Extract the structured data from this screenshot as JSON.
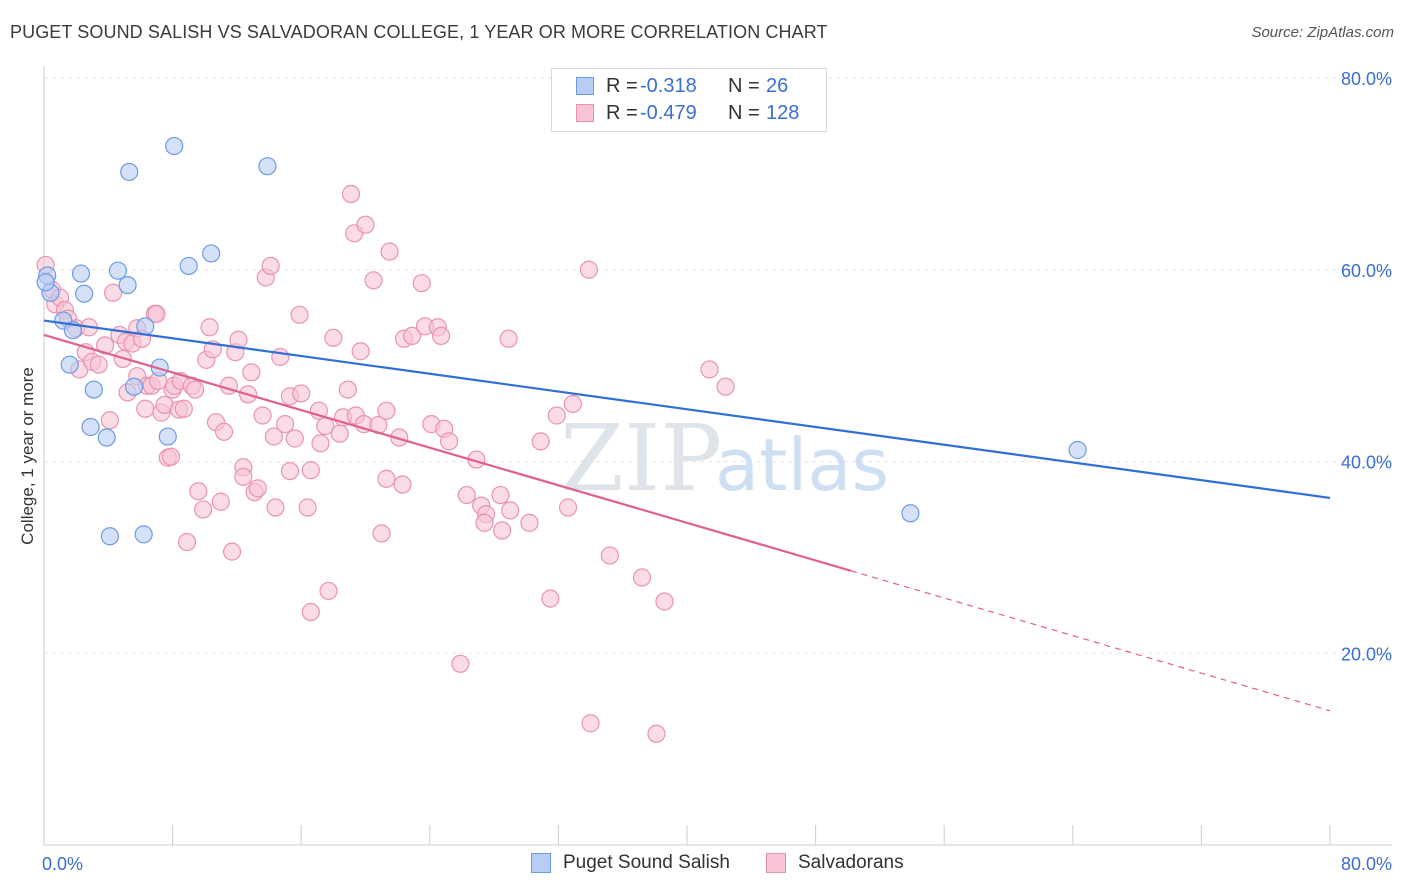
{
  "title": "PUGET SOUND SALISH VS SALVADORAN COLLEGE, 1 YEAR OR MORE CORRELATION CHART",
  "source": "Source: ZipAtlas.com",
  "watermark": {
    "zip": "ZIP",
    "atlas": "atlas"
  },
  "legend": {
    "r_label": "R =",
    "n_label": "N =",
    "rows": [
      {
        "r": "-0.318",
        "n": "26",
        "fill": "#b7cdf3",
        "stroke": "#6e9be6"
      },
      {
        "r": "-0.479",
        "n": "128",
        "fill": "#f8c3d4",
        "stroke": "#e993b2"
      }
    ]
  },
  "bottom_legend": [
    {
      "label": "Puget Sound Salish",
      "fill": "#b7cdf3",
      "stroke": "#6e9be6"
    },
    {
      "label": "Salvadorans",
      "fill": "#f8c3d4",
      "stroke": "#e993b2"
    }
  ],
  "chart_data": {
    "type": "scatter",
    "xlabel": "",
    "ylabel": "College, 1 year or more",
    "xlim": [
      0,
      80
    ],
    "ylim": [
      0,
      80
    ],
    "x_tick_labels": [
      "0.0%",
      "80.0%"
    ],
    "y_tick_labels": [
      "20.0%",
      "40.0%",
      "60.0%",
      "80.0%"
    ],
    "y_ticks": [
      20,
      40,
      60,
      80
    ],
    "colors": {
      "blue_line": "#2f6fd6",
      "pink_line": "#e0608e",
      "axis_text": "#3a6fd0"
    },
    "series": [
      {
        "name": "Puget Sound Salish",
        "trend": {
          "x0": 0,
          "y0": 54.7,
          "x1": 80,
          "y1": 36.2,
          "dash_from": null
        },
        "points": [
          [
            0.2,
            59.4
          ],
          [
            0.4,
            57.6
          ],
          [
            1.2,
            54.7
          ],
          [
            1.6,
            50.1
          ],
          [
            1.8,
            53.7
          ],
          [
            2.3,
            59.6
          ],
          [
            2.5,
            57.5
          ],
          [
            2.9,
            43.6
          ],
          [
            3.1,
            47.5
          ],
          [
            3.9,
            42.5
          ],
          [
            4.1,
            32.2
          ],
          [
            4.6,
            59.9
          ],
          [
            5.2,
            58.4
          ],
          [
            5.3,
            70.2
          ],
          [
            5.6,
            47.8
          ],
          [
            6.2,
            32.4
          ],
          [
            6.3,
            54.1
          ],
          [
            7.2,
            49.8
          ],
          [
            7.7,
            42.6
          ],
          [
            8.1,
            72.9
          ],
          [
            9.0,
            60.4
          ],
          [
            10.4,
            61.7
          ],
          [
            13.9,
            70.8
          ],
          [
            64.3,
            41.2
          ],
          [
            53.9,
            34.6
          ],
          [
            0.1,
            58.7
          ]
        ]
      },
      {
        "name": "Salvadorans",
        "trend": {
          "x0": 0,
          "y0": 53.2,
          "x1": 80,
          "y1": 14.0,
          "dash_from": 50.2
        },
        "points": [
          [
            0.1,
            60.5
          ],
          [
            0.5,
            57.9
          ],
          [
            0.7,
            56.4
          ],
          [
            1.0,
            57.1
          ],
          [
            1.3,
            55.8
          ],
          [
            1.5,
            54.9
          ],
          [
            2.0,
            53.9
          ],
          [
            2.2,
            49.6
          ],
          [
            2.6,
            51.4
          ],
          [
            2.8,
            54.0
          ],
          [
            3.0,
            50.4
          ],
          [
            3.4,
            50.1
          ],
          [
            3.8,
            52.1
          ],
          [
            4.1,
            44.3
          ],
          [
            4.3,
            57.6
          ],
          [
            4.7,
            53.2
          ],
          [
            4.9,
            50.7
          ],
          [
            5.1,
            52.5
          ],
          [
            5.2,
            47.2
          ],
          [
            5.5,
            52.3
          ],
          [
            5.8,
            48.9
          ],
          [
            5.8,
            53.9
          ],
          [
            6.1,
            52.8
          ],
          [
            6.3,
            45.5
          ],
          [
            6.4,
            47.9
          ],
          [
            6.7,
            47.9
          ],
          [
            6.9,
            55.4
          ],
          [
            7.0,
            55.4
          ],
          [
            7.1,
            48.4
          ],
          [
            7.3,
            45.1
          ],
          [
            7.5,
            45.9
          ],
          [
            7.7,
            40.4
          ],
          [
            7.9,
            40.5
          ],
          [
            8.0,
            47.5
          ],
          [
            8.1,
            47.9
          ],
          [
            8.4,
            45.4
          ],
          [
            8.5,
            48.4
          ],
          [
            8.7,
            45.5
          ],
          [
            8.9,
            31.6
          ],
          [
            9.2,
            47.9
          ],
          [
            9.4,
            47.5
          ],
          [
            9.6,
            36.9
          ],
          [
            9.9,
            35.0
          ],
          [
            10.1,
            50.6
          ],
          [
            10.3,
            54.0
          ],
          [
            10.5,
            51.7
          ],
          [
            10.7,
            44.1
          ],
          [
            11.0,
            35.8
          ],
          [
            11.2,
            43.1
          ],
          [
            11.5,
            47.9
          ],
          [
            11.7,
            30.6
          ],
          [
            11.9,
            51.4
          ],
          [
            12.1,
            52.7
          ],
          [
            12.4,
            39.4
          ],
          [
            12.4,
            38.4
          ],
          [
            12.7,
            47.0
          ],
          [
            12.9,
            49.3
          ],
          [
            13.1,
            36.8
          ],
          [
            13.3,
            37.2
          ],
          [
            13.6,
            44.8
          ],
          [
            13.8,
            59.2
          ],
          [
            14.1,
            60.4
          ],
          [
            14.3,
            42.6
          ],
          [
            14.4,
            35.2
          ],
          [
            14.7,
            50.9
          ],
          [
            15.0,
            43.9
          ],
          [
            15.3,
            46.8
          ],
          [
            15.3,
            39.0
          ],
          [
            15.6,
            42.4
          ],
          [
            15.9,
            55.3
          ],
          [
            16.0,
            47.1
          ],
          [
            16.4,
            35.2
          ],
          [
            16.6,
            39.1
          ],
          [
            16.6,
            24.3
          ],
          [
            17.2,
            41.9
          ],
          [
            17.1,
            45.3
          ],
          [
            17.5,
            43.7
          ],
          [
            17.7,
            26.5
          ],
          [
            18.0,
            52.9
          ],
          [
            18.4,
            42.9
          ],
          [
            18.6,
            44.6
          ],
          [
            18.9,
            47.5
          ],
          [
            19.1,
            67.9
          ],
          [
            19.3,
            63.8
          ],
          [
            19.4,
            44.8
          ],
          [
            19.7,
            51.5
          ],
          [
            19.9,
            43.9
          ],
          [
            20.0,
            64.7
          ],
          [
            20.5,
            58.9
          ],
          [
            20.8,
            43.8
          ],
          [
            21.0,
            32.5
          ],
          [
            21.3,
            45.3
          ],
          [
            21.3,
            38.2
          ],
          [
            21.5,
            61.9
          ],
          [
            22.1,
            42.5
          ],
          [
            22.3,
            37.6
          ],
          [
            22.4,
            52.8
          ],
          [
            22.9,
            53.1
          ],
          [
            23.5,
            58.6
          ],
          [
            23.7,
            54.1
          ],
          [
            24.1,
            43.9
          ],
          [
            24.5,
            54.0
          ],
          [
            24.7,
            53.1
          ],
          [
            24.9,
            43.4
          ],
          [
            25.2,
            42.1
          ],
          [
            26.3,
            36.5
          ],
          [
            26.9,
            40.2
          ],
          [
            27.2,
            35.4
          ],
          [
            27.5,
            34.5
          ],
          [
            27.4,
            33.6
          ],
          [
            28.4,
            36.5
          ],
          [
            28.5,
            32.8
          ],
          [
            28.9,
            52.8
          ],
          [
            29.0,
            34.9
          ],
          [
            30.2,
            33.6
          ],
          [
            30.9,
            42.1
          ],
          [
            31.5,
            25.7
          ],
          [
            31.9,
            44.8
          ],
          [
            32.6,
            35.2
          ],
          [
            32.9,
            46.0
          ],
          [
            33.9,
            60.0
          ],
          [
            34.0,
            12.7
          ],
          [
            35.2,
            30.2
          ],
          [
            37.2,
            27.9
          ],
          [
            38.6,
            25.4
          ],
          [
            41.4,
            49.6
          ],
          [
            38.1,
            11.6
          ],
          [
            42.4,
            47.8
          ],
          [
            25.9,
            18.9
          ]
        ]
      }
    ]
  }
}
